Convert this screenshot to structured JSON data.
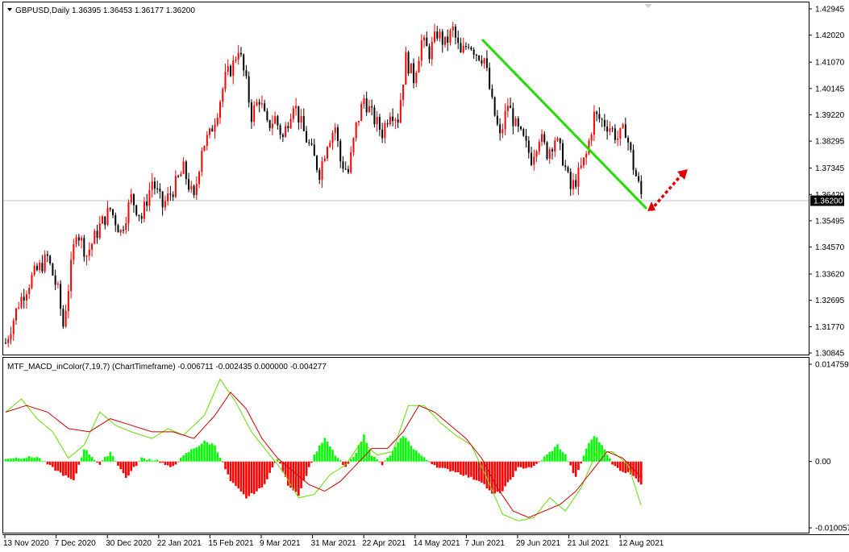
{
  "chart_data": [
    {
      "type": "candlestick",
      "header": {
        "symbol": "GBPUSD,Daily",
        "ohlc": "1.36395 1.36453 1.36177 1.36200"
      },
      "y_ticks": [
        "1.42945",
        "1.42020",
        "1.41070",
        "1.40145",
        "1.39220",
        "1.38295",
        "1.37345",
        "1.36420",
        "1.35495",
        "1.34570",
        "1.33620",
        "1.32695",
        "1.31770",
        "1.30845"
      ],
      "ylim": [
        1.30845,
        1.42945
      ],
      "current_price": "1.36200",
      "current_price_value": 1.362,
      "x_labels": [
        "13 Nov 2020",
        "7 Dec 2020",
        "30 Dec 2020",
        "22 Jan 2021",
        "15 Feb 2021",
        "9 Mar 2021",
        "31 Mar 2021",
        "22 Apr 2021",
        "14 May 2021",
        "7 Jun 2021",
        "29 Jun 2021",
        "21 Jul 2021",
        "12 Aug 2021"
      ],
      "bull_color": "#ff0000",
      "bear_color": "#000000",
      "close_path": [
        [
          0,
          1.312
        ],
        [
          5,
          1.326
        ],
        [
          10,
          1.335
        ],
        [
          16,
          1.342
        ],
        [
          20,
          1.33
        ],
        [
          22,
          1.318
        ],
        [
          27,
          1.352
        ],
        [
          31,
          1.343
        ],
        [
          36,
          1.353
        ],
        [
          40,
          1.359
        ],
        [
          44,
          1.351
        ],
        [
          48,
          1.363
        ],
        [
          52,
          1.356
        ],
        [
          56,
          1.369
        ],
        [
          60,
          1.36
        ],
        [
          64,
          1.366
        ],
        [
          68,
          1.373
        ],
        [
          72,
          1.362
        ],
        [
          75,
          1.381
        ],
        [
          78,
          1.385
        ],
        [
          81,
          1.394
        ],
        [
          84,
          1.405
        ],
        [
          87,
          1.41
        ],
        [
          89,
          1.416
        ],
        [
          92,
          1.403
        ],
        [
          94,
          1.392
        ],
        [
          97,
          1.398
        ],
        [
          100,
          1.388
        ],
        [
          103,
          1.391
        ],
        [
          106,
          1.384
        ],
        [
          110,
          1.397
        ],
        [
          114,
          1.386
        ],
        [
          117,
          1.379
        ],
        [
          120,
          1.372
        ],
        [
          123,
          1.383
        ],
        [
          126,
          1.388
        ],
        [
          128,
          1.376
        ],
        [
          131,
          1.372
        ],
        [
          134,
          1.388
        ],
        [
          137,
          1.398
        ],
        [
          140,
          1.392
        ],
        [
          144,
          1.386
        ],
        [
          147,
          1.394
        ],
        [
          150,
          1.391
        ],
        [
          153,
          1.412
        ],
        [
          156,
          1.405
        ],
        [
          159,
          1.418
        ],
        [
          162,
          1.414
        ],
        [
          165,
          1.421
        ],
        [
          168,
          1.417
        ],
        [
          171,
          1.422
        ],
        [
          174,
          1.413
        ],
        [
          177,
          1.418
        ],
        [
          180,
          1.414
        ],
        [
          183,
          1.412
        ],
        [
          186,
          1.396
        ],
        [
          189,
          1.384
        ],
        [
          192,
          1.396
        ],
        [
          195,
          1.388
        ],
        [
          198,
          1.383
        ],
        [
          201,
          1.377
        ],
        [
          204,
          1.385
        ],
        [
          207,
          1.379
        ],
        [
          210,
          1.384
        ],
        [
          213,
          1.377
        ],
        [
          216,
          1.366
        ],
        [
          219,
          1.371
        ],
        [
          222,
          1.378
        ],
        [
          225,
          1.392
        ],
        [
          228,
          1.39
        ],
        [
          231,
          1.388
        ],
        [
          234,
          1.384
        ],
        [
          237,
          1.387
        ],
        [
          240,
          1.374
        ],
        [
          243,
          1.364
        ]
      ]
    },
    {
      "type": "histogram+lines",
      "header": "MTF_MACD_inColor(7,19,7) (ChartTimeframe) -0.006711 -0.002435 0.000000 -0.004277",
      "y_ticks": [
        "0.014759",
        "0.00",
        "-0.010057"
      ],
      "ylim": [
        -0.010057,
        0.014759
      ],
      "positive_color": "#00ff00",
      "negative_color": "#ff0000",
      "macd_line_color": "#66dd00",
      "signal_line_color": "#cc0000",
      "histogram_path": [
        [
          0,
          0.0005
        ],
        [
          12,
          0.0007
        ],
        [
          18,
          -0.001
        ],
        [
          26,
          -0.003
        ],
        [
          30,
          0.002
        ],
        [
          36,
          -0.0005
        ],
        [
          40,
          0.0015
        ],
        [
          46,
          -0.0025
        ],
        [
          52,
          0.0005
        ],
        [
          58,
          0.0002
        ],
        [
          63,
          -0.001
        ],
        [
          70,
          0.0015
        ],
        [
          76,
          0.003
        ],
        [
          80,
          0.0025
        ],
        [
          86,
          -0.003
        ],
        [
          92,
          -0.0055
        ],
        [
          98,
          -0.004
        ],
        [
          104,
          0.0005
        ],
        [
          108,
          -0.0035
        ],
        [
          112,
          -0.005
        ],
        [
          118,
          0.001
        ],
        [
          122,
          0.0035
        ],
        [
          126,
          0.001
        ],
        [
          130,
          -0.001
        ],
        [
          134,
          0.0015
        ],
        [
          137,
          0.004
        ],
        [
          140,
          0.001
        ],
        [
          144,
          -0.0005
        ],
        [
          148,
          0.0015
        ],
        [
          152,
          0.004
        ],
        [
          156,
          0.002
        ],
        [
          160,
          0.0005
        ],
        [
          166,
          -0.001
        ],
        [
          172,
          -0.0015
        ],
        [
          178,
          -0.0025
        ],
        [
          182,
          -0.003
        ],
        [
          186,
          -0.005
        ],
        [
          190,
          -0.0045
        ],
        [
          196,
          -0.001
        ],
        [
          202,
          -0.0008
        ],
        [
          207,
          0.001
        ],
        [
          211,
          0.0025
        ],
        [
          214,
          0.001
        ],
        [
          218,
          -0.0025
        ],
        [
          222,
          0.002
        ],
        [
          225,
          0.004
        ],
        [
          229,
          0.002
        ],
        [
          232,
          -0.0005
        ],
        [
          236,
          -0.0015
        ],
        [
          240,
          -0.002
        ],
        [
          243,
          -0.0035
        ]
      ],
      "macd_path": [
        [
          0,
          0.0075
        ],
        [
          6,
          0.0095
        ],
        [
          12,
          0.0065
        ],
        [
          18,
          0.0045
        ],
        [
          24,
          0.0005
        ],
        [
          30,
          0.0025
        ],
        [
          36,
          0.0075
        ],
        [
          42,
          0.0055
        ],
        [
          48,
          0.0045
        ],
        [
          56,
          0.0035
        ],
        [
          62,
          0.005
        ],
        [
          68,
          0.004
        ],
        [
          76,
          0.007
        ],
        [
          82,
          0.0125
        ],
        [
          88,
          0.009
        ],
        [
          94,
          0.0045
        ],
        [
          100,
          0.0015
        ],
        [
          106,
          -0.0015
        ],
        [
          112,
          -0.0055
        ],
        [
          118,
          -0.005
        ],
        [
          124,
          -0.002
        ],
        [
          130,
          -0.0005
        ],
        [
          136,
          0.003
        ],
        [
          142,
          0.001
        ],
        [
          148,
          0.0015
        ],
        [
          154,
          0.0085
        ],
        [
          160,
          0.0085
        ],
        [
          166,
          0.006
        ],
        [
          172,
          0.004
        ],
        [
          178,
          0.0025
        ],
        [
          184,
          -0.0025
        ],
        [
          190,
          -0.008
        ],
        [
          196,
          -0.009
        ],
        [
          202,
          -0.0085
        ],
        [
          208,
          -0.0055
        ],
        [
          214,
          -0.0075
        ],
        [
          220,
          -0.004
        ],
        [
          226,
          0.0015
        ],
        [
          232,
          0.0015
        ],
        [
          238,
          -0.0005
        ],
        [
          243,
          -0.0067
        ]
      ],
      "signal_path": [
        [
          0,
          0.0075
        ],
        [
          8,
          0.0085
        ],
        [
          16,
          0.0075
        ],
        [
          24,
          0.005
        ],
        [
          32,
          0.0045
        ],
        [
          40,
          0.0065
        ],
        [
          48,
          0.0055
        ],
        [
          56,
          0.0045
        ],
        [
          64,
          0.0045
        ],
        [
          72,
          0.0035
        ],
        [
          80,
          0.007
        ],
        [
          86,
          0.0105
        ],
        [
          92,
          0.008
        ],
        [
          98,
          0.0035
        ],
        [
          104,
          0.0005
        ],
        [
          110,
          -0.0015
        ],
        [
          116,
          -0.0035
        ],
        [
          122,
          -0.0045
        ],
        [
          128,
          -0.003
        ],
        [
          134,
          -0.0005
        ],
        [
          140,
          0.002
        ],
        [
          146,
          0.002
        ],
        [
          152,
          0.0045
        ],
        [
          158,
          0.0085
        ],
        [
          164,
          0.0075
        ],
        [
          170,
          0.0055
        ],
        [
          176,
          0.0035
        ],
        [
          182,
          0.0005
        ],
        [
          188,
          -0.004
        ],
        [
          194,
          -0.0075
        ],
        [
          200,
          -0.0085
        ],
        [
          206,
          -0.0075
        ],
        [
          212,
          -0.0065
        ],
        [
          218,
          -0.0045
        ],
        [
          224,
          -0.0015
        ],
        [
          230,
          0.0015
        ],
        [
          236,
          0.0005
        ],
        [
          243,
          -0.0024
        ]
      ]
    }
  ]
}
